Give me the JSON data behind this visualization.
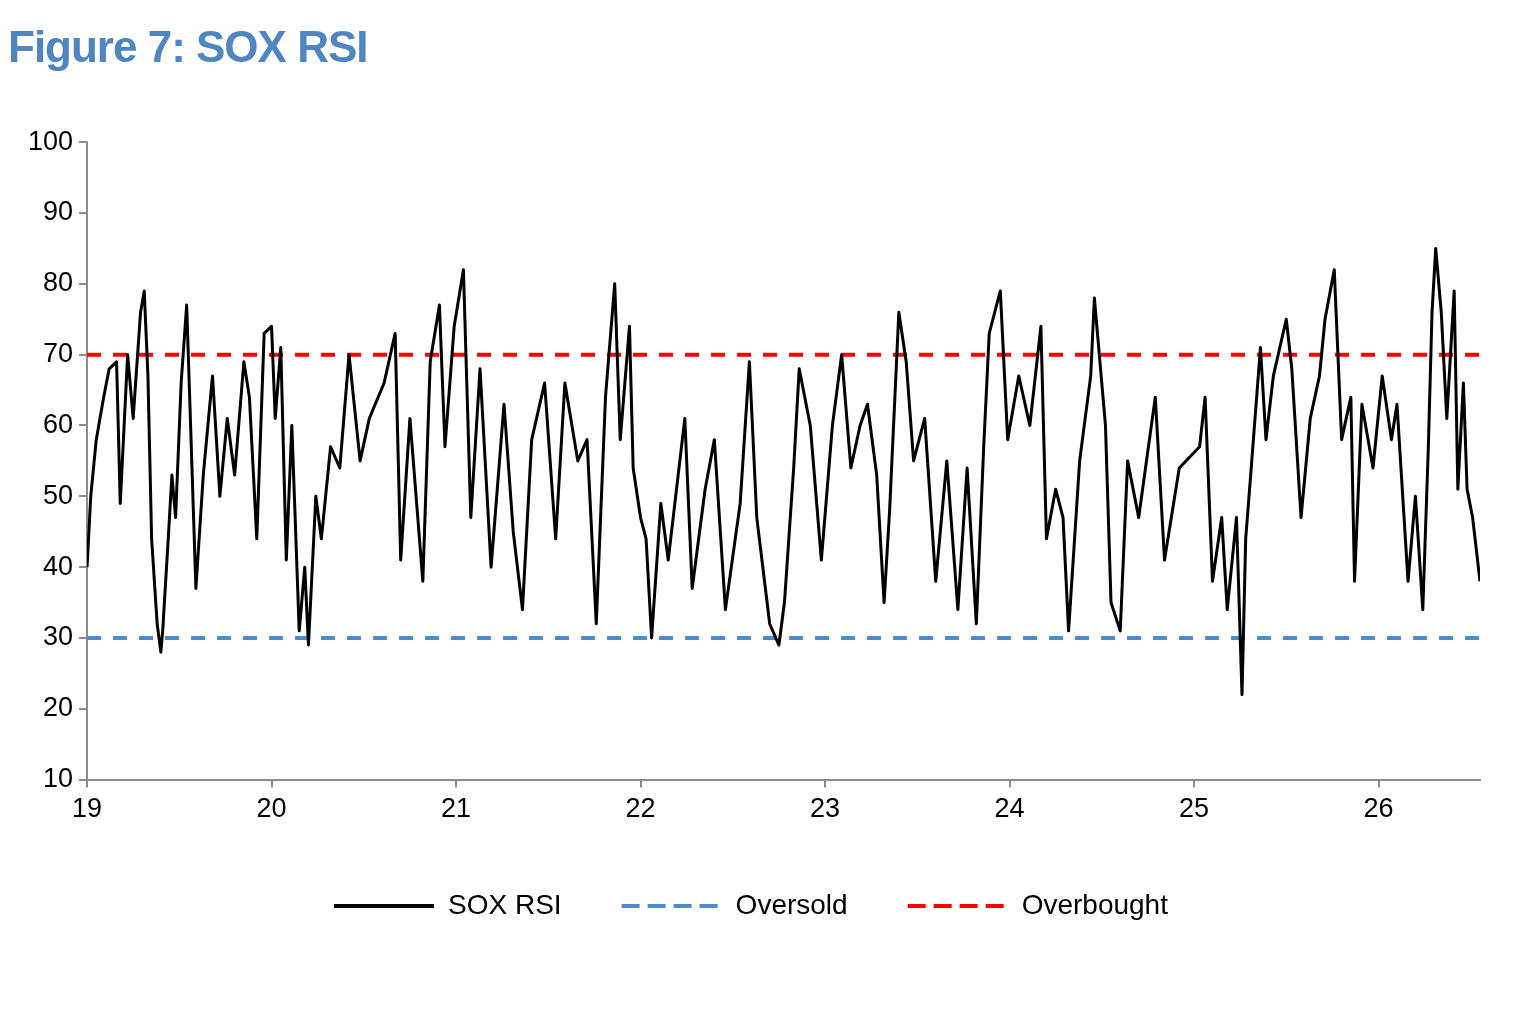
{
  "chart_data": {
    "type": "line",
    "title": "Figure 7: SOX RSI",
    "x": [
      19.0,
      19.02,
      19.05,
      19.09,
      19.12,
      19.16,
      19.18,
      19.22,
      19.25,
      19.29,
      19.31,
      19.33,
      19.35,
      19.38,
      19.4,
      19.41,
      19.44,
      19.46,
      19.48,
      19.51,
      19.54,
      19.57,
      19.59,
      19.63,
      19.68,
      19.72,
      19.76,
      19.8,
      19.85,
      19.88,
      19.92,
      19.96,
      20.0,
      20.02,
      20.05,
      20.08,
      20.11,
      20.15,
      20.18,
      20.2,
      20.24,
      20.27,
      20.32,
      20.37,
      20.42,
      20.48,
      20.53,
      20.61,
      20.67,
      20.7,
      20.75,
      20.82,
      20.86,
      20.91,
      20.94,
      20.99,
      21.04,
      21.08,
      21.13,
      21.19,
      21.26,
      21.31,
      21.36,
      21.41,
      21.48,
      21.54,
      21.59,
      21.66,
      21.71,
      21.76,
      21.81,
      21.86,
      21.89,
      21.94,
      21.96,
      22.0,
      22.03,
      22.06,
      22.11,
      22.15,
      22.24,
      22.28,
      22.35,
      22.4,
      22.46,
      22.54,
      22.59,
      22.63,
      22.7,
      22.75,
      22.78,
      22.83,
      22.86,
      22.92,
      22.98,
      23.04,
      23.09,
      23.14,
      23.19,
      23.23,
      23.28,
      23.32,
      23.35,
      23.4,
      23.44,
      23.48,
      23.54,
      23.6,
      23.66,
      23.72,
      23.77,
      23.82,
      23.86,
      23.89,
      23.95,
      23.99,
      24.05,
      24.11,
      24.17,
      24.2,
      24.25,
      24.29,
      24.32,
      24.38,
      24.44,
      24.46,
      24.52,
      24.55,
      24.6,
      24.64,
      24.7,
      24.79,
      24.84,
      24.92,
      25.03,
      25.06,
      25.1,
      25.15,
      25.18,
      25.23,
      25.26,
      25.28,
      25.31,
      25.36,
      25.39,
      25.43,
      25.5,
      25.53,
      25.58,
      25.63,
      25.68,
      25.71,
      25.76,
      25.8,
      25.85,
      25.87,
      25.91,
      25.97,
      26.02,
      26.07,
      26.1,
      26.16,
      26.2,
      26.24,
      26.27,
      26.29,
      26.31,
      26.34,
      26.37,
      26.41,
      26.43,
      26.46,
      26.48,
      26.51,
      26.55
    ],
    "series": [
      {
        "name": "SOX RSI",
        "color": "#000000",
        "values": [
          40,
          50,
          58,
          64,
          68,
          69,
          49,
          70,
          61,
          76,
          79,
          67,
          44,
          32,
          28,
          31,
          44,
          53,
          47,
          66,
          77,
          53,
          37,
          53,
          67,
          50,
          61,
          53,
          69,
          64,
          44,
          73,
          74,
          61,
          71,
          41,
          60,
          31,
          40,
          29,
          50,
          44,
          57,
          54,
          70,
          55,
          61,
          66,
          73,
          41,
          61,
          38,
          69,
          77,
          57,
          74,
          82,
          47,
          68,
          40,
          63,
          45,
          34,
          58,
          66,
          44,
          66,
          55,
          58,
          32,
          64,
          80,
          58,
          74,
          54,
          47,
          44,
          30,
          49,
          41,
          61,
          37,
          51,
          58,
          34,
          49,
          69,
          47,
          32,
          29,
          35,
          54,
          68,
          60,
          41,
          60,
          70,
          54,
          60,
          63,
          53,
          35,
          48,
          76,
          69,
          55,
          61,
          38,
          55,
          34,
          54,
          32,
          57,
          73,
          79,
          58,
          67,
          60,
          74,
          44,
          51,
          47,
          31,
          55,
          67,
          78,
          60,
          35,
          31,
          55,
          47,
          64,
          41,
          54,
          57,
          64,
          38,
          47,
          34,
          47,
          22,
          44,
          54,
          71,
          58,
          67,
          75,
          68,
          47,
          61,
          67,
          75,
          82,
          58,
          64,
          38,
          63,
          54,
          67,
          58,
          63,
          38,
          50,
          34,
          57,
          76,
          85,
          76,
          61,
          79,
          51,
          66,
          51,
          47,
          38
        ]
      }
    ],
    "xlim": [
      19,
      26.55
    ],
    "xticks": [
      19,
      20,
      21,
      22,
      23,
      24,
      25,
      26
    ],
    "ylim": [
      10,
      100
    ],
    "yticks": [
      10,
      20,
      30,
      40,
      50,
      60,
      70,
      80,
      90,
      100
    ],
    "ref_lines": [
      {
        "axis": "y",
        "value": 30,
        "label": "Oversold",
        "color": "#4f8bc6",
        "line_style": "dashed"
      },
      {
        "axis": "y",
        "value": 70,
        "label": "Overbought",
        "color": "#ff0000",
        "line_style": "dashed"
      }
    ],
    "grid": false,
    "legend": "bottom",
    "marker": "none",
    "line_style": "solid"
  }
}
